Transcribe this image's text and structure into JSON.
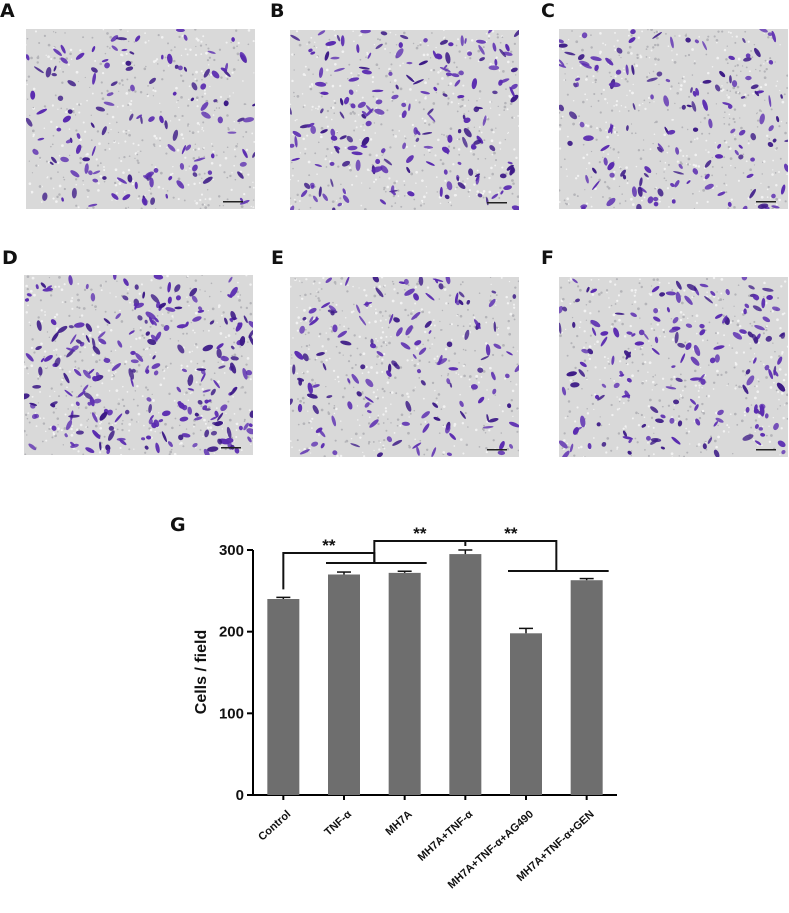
{
  "panels": [
    {
      "label": "A",
      "density": 0.55
    },
    {
      "label": "B",
      "density": 0.8
    },
    {
      "label": "C",
      "density": 0.6
    },
    {
      "label": "D",
      "density": 1.0
    },
    {
      "label": "E",
      "density": 0.6
    },
    {
      "label": "F",
      "density": 0.7
    }
  ],
  "colors": {
    "stain": "#5a2bb0",
    "stain_dark": "#3c1a86",
    "background": "#d9d9d9",
    "bar": "#6e6e6e",
    "axis": "#000000"
  },
  "chart_data": {
    "type": "bar",
    "panel_label": "G",
    "categories": [
      "Control",
      "TNF-α",
      "MH7A",
      "MH7A+TNF-α",
      "MH7A+TNF-α+AG490",
      "MH7A+TNF-α+GEN"
    ],
    "values": [
      240,
      270,
      272,
      295,
      198,
      263
    ],
    "errors": [
      2,
      3,
      2,
      5,
      6,
      2
    ],
    "ylabel": "Cells / field",
    "ylim": [
      0,
      300
    ],
    "yticks": [
      0,
      100,
      200,
      300
    ],
    "significance": [
      {
        "from": [
          0
        ],
        "to": [
          1,
          2
        ],
        "label": "**"
      },
      {
        "from": [
          1,
          2
        ],
        "to": [
          3
        ],
        "label": "**"
      },
      {
        "from": [
          3
        ],
        "to": [
          4,
          5
        ],
        "label": "**"
      }
    ]
  }
}
